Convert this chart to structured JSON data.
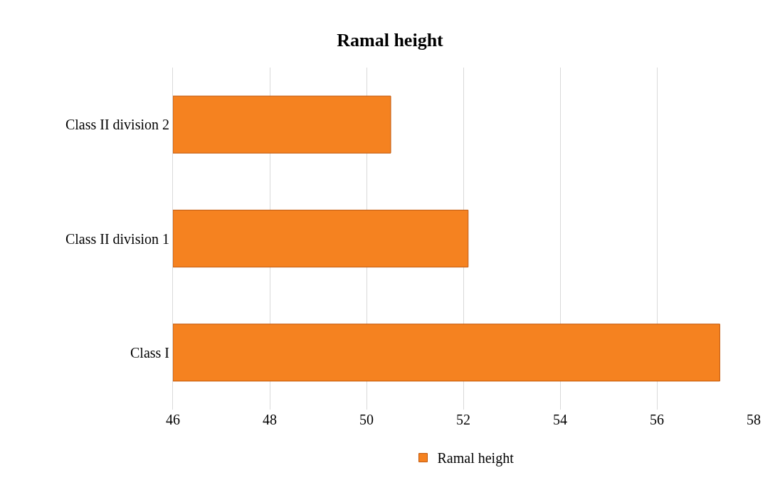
{
  "chart_data": {
    "type": "bar",
    "orientation": "horizontal",
    "title": "Ramal height",
    "categories": [
      "Class II division 2",
      "Class II division 1",
      "Class I"
    ],
    "series": [
      {
        "name": "Ramal height",
        "color": "#f58220",
        "values": [
          50.5,
          52.1,
          57.3
        ]
      }
    ],
    "xlim": [
      46,
      58
    ],
    "xticks": [
      46,
      48,
      50,
      52,
      54,
      56,
      58
    ],
    "grid": "x",
    "legend": "bottom"
  }
}
